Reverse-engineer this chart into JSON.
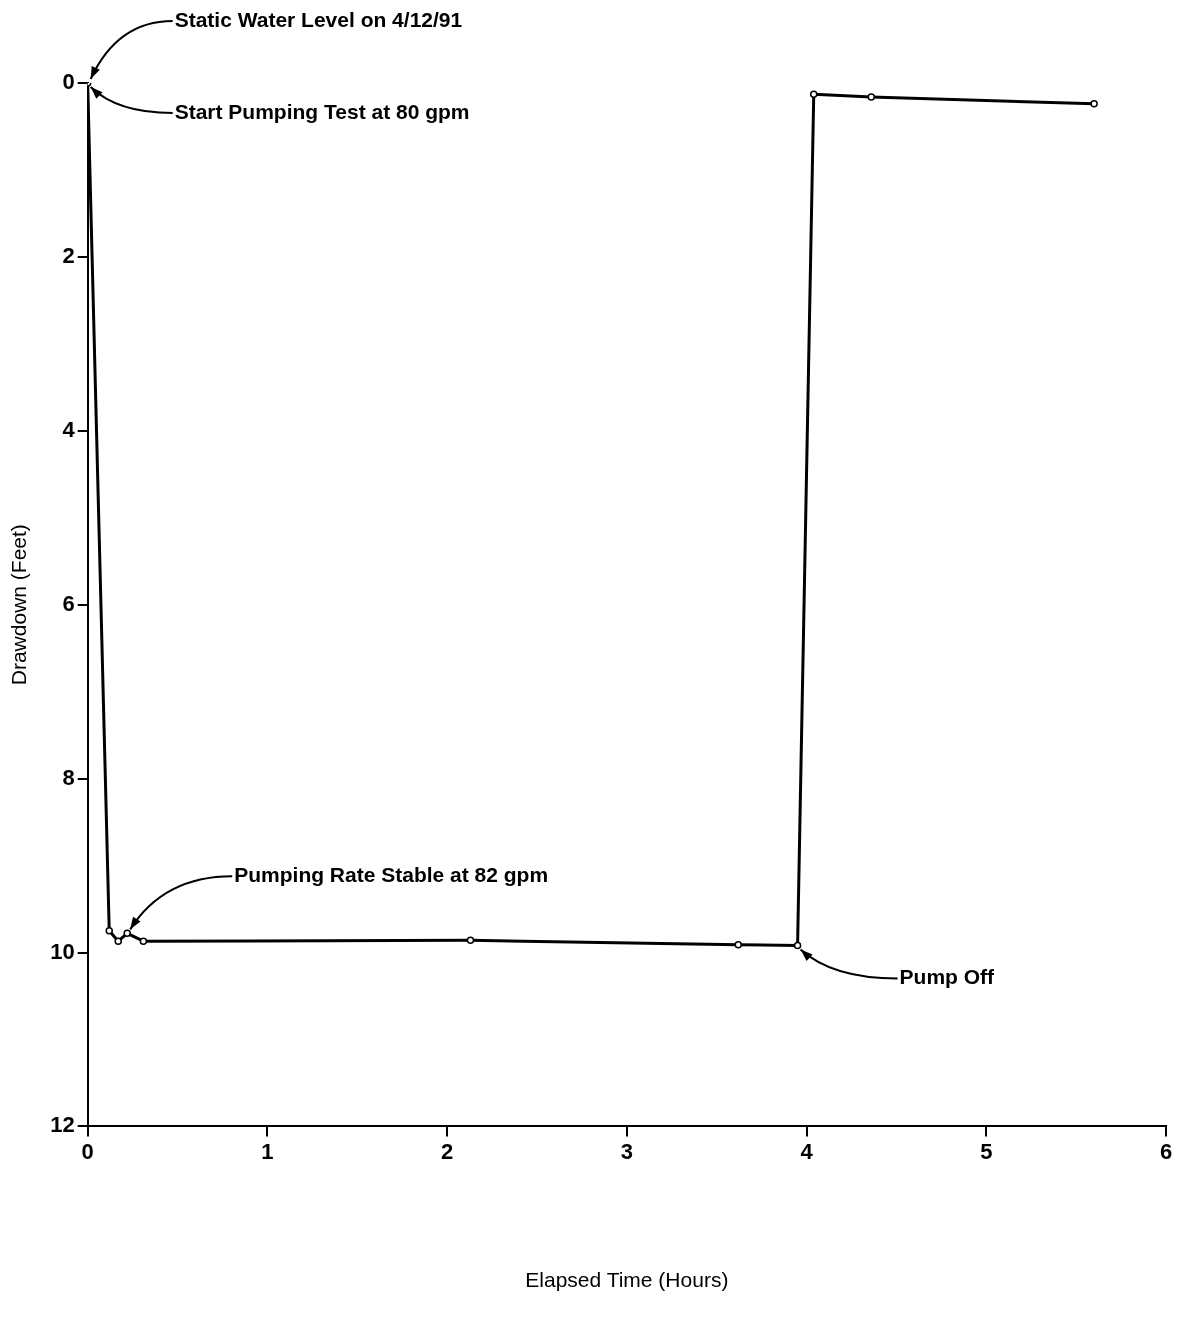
{
  "chart_data": {
    "type": "line",
    "xlabel": "Elapsed Time (Hours)",
    "ylabel": "Drawdown (Feet)",
    "x": [
      0,
      0.12,
      0.17,
      0.22,
      0.31,
      2.13,
      3.62,
      3.95,
      4.04,
      4.36,
      5.6
    ],
    "series": [
      {
        "color": "#000000",
        "values": [
          0,
          9.75,
          9.87,
          9.78,
          9.87,
          9.86,
          9.91,
          9.92,
          0.13,
          0.16,
          0.24
        ]
      }
    ],
    "xlim": [
      0,
      6
    ],
    "xticks": [
      0,
      1,
      2,
      3,
      4,
      5,
      6
    ],
    "ylim": [
      12,
      0
    ],
    "yticks": [
      0,
      2,
      4,
      6,
      8,
      10,
      12
    ],
    "grid": false,
    "legend": false,
    "marker": "circle",
    "line_style": "solid",
    "annotations": [
      {
        "text": "Static Water Level on 4/12/91",
        "x": 0,
        "y": 0
      },
      {
        "text": "Start Pumping Test at 80 gpm",
        "x": 0,
        "y": 0
      },
      {
        "text": "Pumping Rate Stable at 82 gpm",
        "x": 0.22,
        "y": 9.78
      },
      {
        "text": "Pump Off",
        "x": 3.95,
        "y": 9.92
      }
    ]
  }
}
